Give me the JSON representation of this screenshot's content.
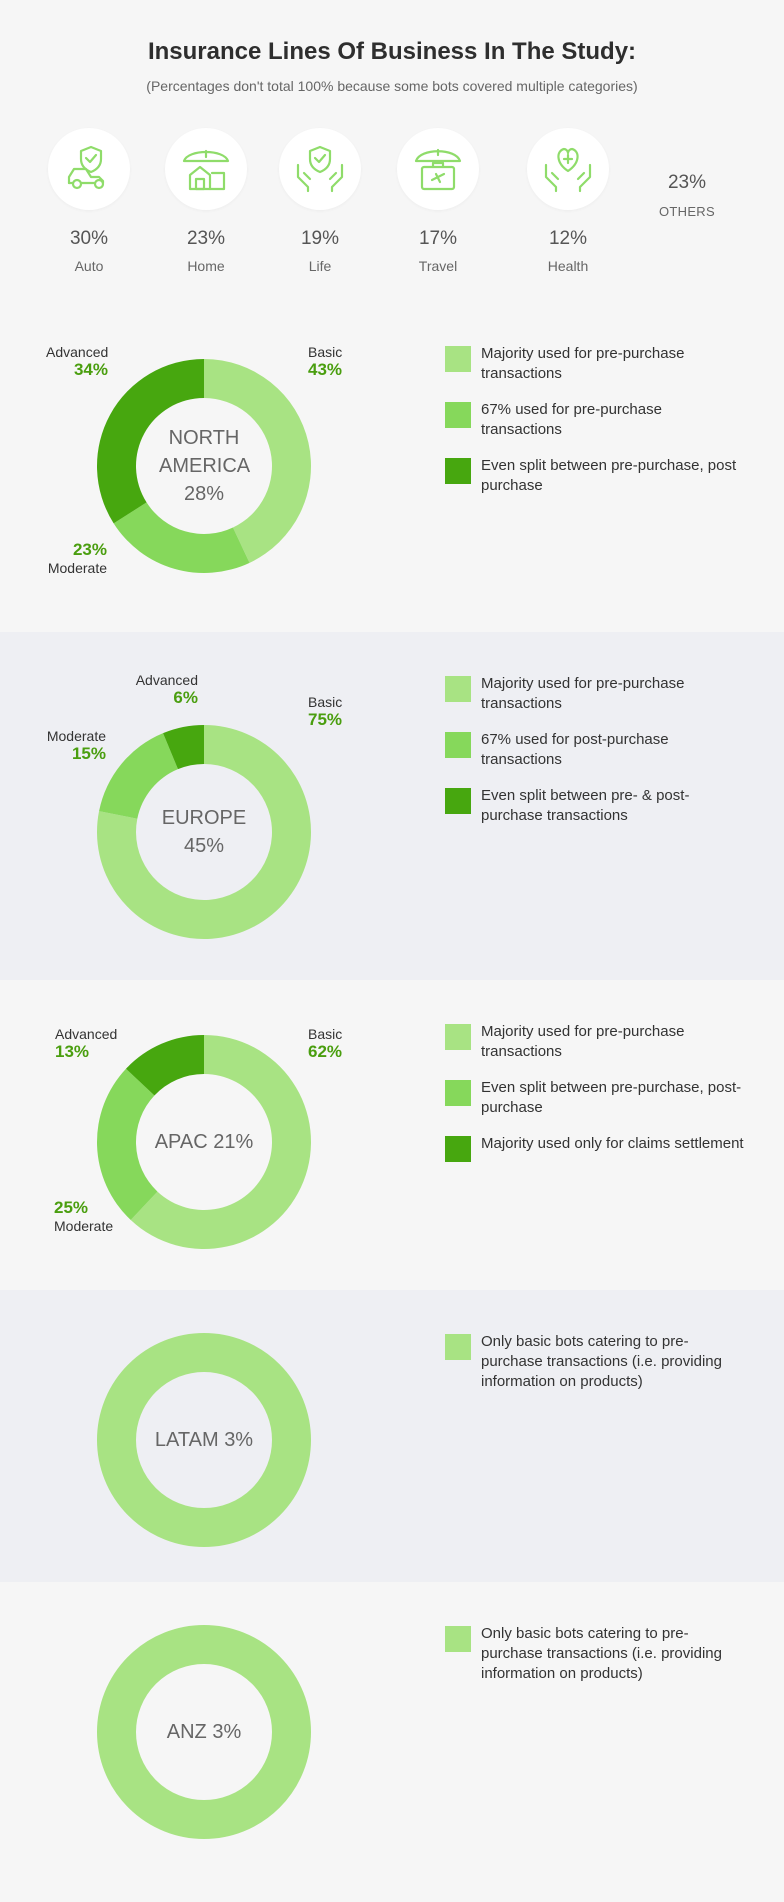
{
  "header": {
    "title": "Insurance Lines Of Business In The Study:",
    "subtitle": "(Percentages don't total 100% because some bots covered multiple categories)"
  },
  "colors": {
    "basic": "#a8e383",
    "moderate": "#86d85b",
    "advanced": "#47a70f",
    "icon": "#8fdc6a",
    "value_text": "#4a9e0f"
  },
  "lines_of_business": [
    {
      "pct": "30%",
      "label": "Auto",
      "icon": "car-shield-icon"
    },
    {
      "pct": "23%",
      "label": "Home",
      "icon": "home-umbrella-icon"
    },
    {
      "pct": "19%",
      "label": "Life",
      "icon": "hands-shield-icon"
    },
    {
      "pct": "17%",
      "label": "Travel",
      "icon": "suitcase-umbrella-icon"
    },
    {
      "pct": "12%",
      "label": "Health",
      "icon": "hands-heart-icon"
    }
  ],
  "others": {
    "pct": "23%",
    "label": "OTHERS"
  },
  "chart_data": [
    {
      "type": "pie",
      "region": "NORTH AMERICA",
      "share": "28%",
      "categories": [
        "Basic",
        "Moderate",
        "Advanced"
      ],
      "values": [
        43,
        23,
        34
      ],
      "value_labels": [
        "43%",
        "23%",
        "34%"
      ],
      "legend": [
        "Majority used for pre-purchase transactions",
        "67% used for pre-purchase transactions",
        "Even split between pre-purchase, post purchase"
      ]
    },
    {
      "type": "pie",
      "region": "EUROPE",
      "share": "45%",
      "categories": [
        "Basic",
        "Moderate",
        "Advanced"
      ],
      "values": [
        75,
        15,
        6
      ],
      "value_labels": [
        "75%",
        "15%",
        "6%"
      ],
      "legend": [
        "Majority used for pre-purchase transactions",
        "67% used for post-purchase transactions",
        "Even split between pre- & post-purchase transactions"
      ]
    },
    {
      "type": "pie",
      "region": "APAC",
      "share": "21%",
      "categories": [
        "Basic",
        "Moderate",
        "Advanced"
      ],
      "values": [
        62,
        25,
        13
      ],
      "value_labels": [
        "62%",
        "25%",
        "13%"
      ],
      "legend": [
        "Majority used for pre-purchase transactions",
        "Even split between pre-purchase, post-purchase",
        "Majority used only for claims settlement"
      ]
    },
    {
      "type": "pie",
      "region": "LATAM",
      "share": "3%",
      "categories": [
        "Basic"
      ],
      "values": [
        100
      ],
      "value_labels": [],
      "legend": [
        "Only basic bots catering to pre-purchase transactions (i.e. providing information on products)"
      ]
    },
    {
      "type": "pie",
      "region": "ANZ",
      "share": "3%",
      "categories": [
        "Basic"
      ],
      "values": [
        100
      ],
      "value_labels": [],
      "legend": [
        "Only basic bots catering to pre-purchase transactions (i.e. providing information on products)"
      ]
    }
  ]
}
